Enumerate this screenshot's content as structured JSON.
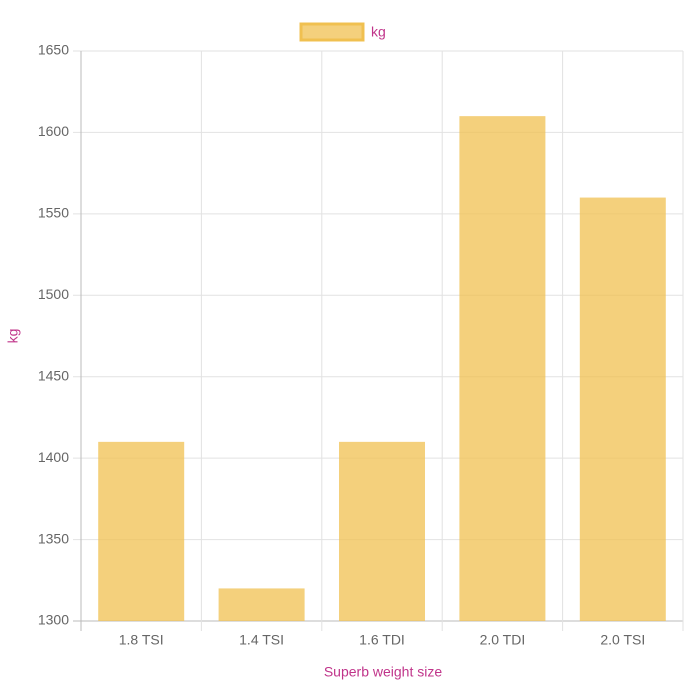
{
  "chart_data": {
    "type": "bar",
    "x_label": "Superb weight size",
    "y_label": "kg",
    "categories": [
      "1.8 TSI",
      "1.4 TSI",
      "1.6 TDI",
      "2.0 TDI",
      "2.0 TSI"
    ],
    "series": [
      {
        "name": "kg",
        "color": "#f0c050",
        "values": [
          1410,
          1320,
          1410,
          1610,
          1560
        ]
      }
    ],
    "ylim": [
      1300,
      1650
    ],
    "yticks": [
      1300,
      1350,
      1400,
      1450,
      1500,
      1550,
      1600,
      1650
    ],
    "grid": true,
    "legend": "top"
  }
}
